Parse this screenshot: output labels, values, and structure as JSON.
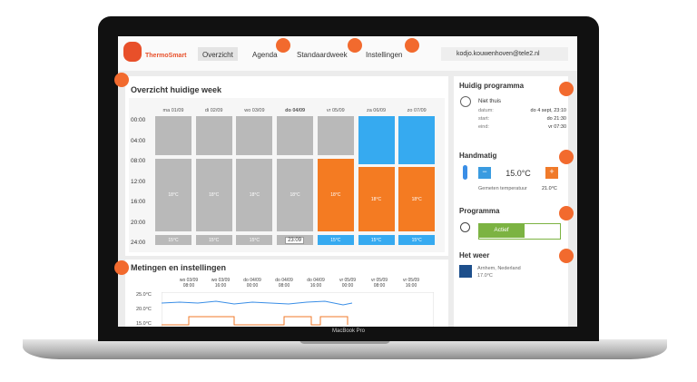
{
  "header": {
    "logo": "ThermoSmart",
    "nav": [
      "Overzicht",
      "Agenda",
      "Standaardweek",
      "Instellingen"
    ],
    "user": "kodjo.kouwenhoven@tele2.nl"
  },
  "week": {
    "title": "Overzicht huidige week",
    "days": [
      "ma 01/09",
      "di 02/09",
      "wo 03/09",
      "do 04/09",
      "vr 05/09",
      "za 06/09",
      "zo 07/09"
    ],
    "times": [
      "00:00",
      "04:00",
      "08:00",
      "12:00",
      "16:00",
      "20:00",
      "24:00"
    ],
    "columns": [
      {
        "mid": "18°C",
        "bottom": "15°C"
      },
      {
        "mid": "18°C",
        "bottom": "15°C"
      },
      {
        "mid": "18°C",
        "bottom": "15°C"
      },
      {
        "mid": "18°C"
      },
      {
        "mid": "18°C",
        "bottom": "15°C"
      },
      {
        "mid": "18°C",
        "bottom": "15°C"
      },
      {
        "mid": "18°C",
        "bottom": "15°C"
      }
    ],
    "current_time": "23:09"
  },
  "metingen": {
    "title": "Metingen en instellingen",
    "x_labels": [
      [
        "wo 03/09",
        "08:00"
      ],
      [
        "wo 03/09",
        "16:00"
      ],
      [
        "do 04/09",
        "00:00"
      ],
      [
        "do 04/09",
        "08:00"
      ],
      [
        "do 04/09",
        "16:00"
      ],
      [
        "vr 05/09",
        "00:00"
      ],
      [
        "vr 05/09",
        "08:00"
      ],
      [
        "vr 05/09",
        "16:00"
      ]
    ],
    "y_labels": [
      "25.0°C",
      "20.0°C",
      "15.0°C"
    ]
  },
  "side": {
    "programma_title": "Huidig programma",
    "status": "Niet thuis",
    "rows": [
      [
        "datum:",
        "do 4 sept, 23:10"
      ],
      [
        "start:",
        "do 21:30"
      ],
      [
        "eind:",
        "vr 07:30"
      ]
    ],
    "handmatig_title": "Handmatig",
    "minus": "−",
    "setpoint": "15.0°C",
    "plus": "+",
    "measured_label": "Gemeten temperatuur",
    "measured": "21.0°C",
    "programma2_title": "Programma",
    "toggle": "Actief",
    "weer_title": "Het weer",
    "location": "Arnhem, Nederland",
    "weer_temp": "17.0°C"
  },
  "device": "MacBook Pro"
}
